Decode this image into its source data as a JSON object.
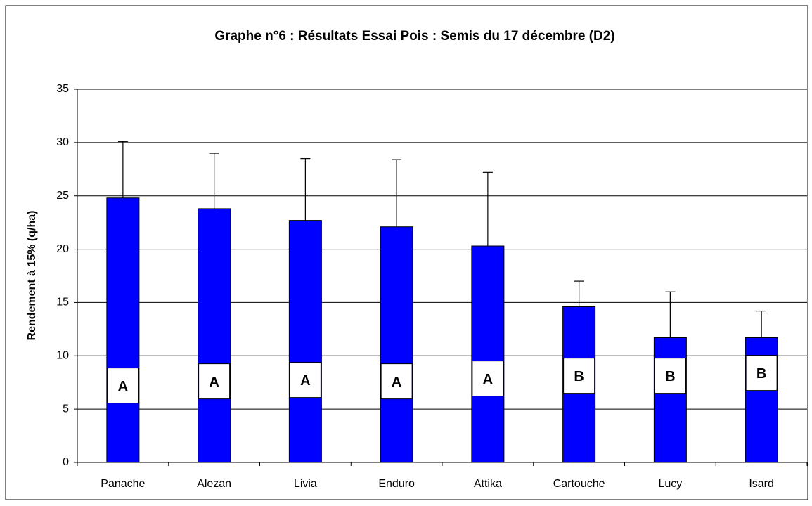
{
  "chart_data": {
    "type": "bar",
    "title": "Graphe n°6 : Résultats Essai Pois : Semis du 17 décembre (D2)",
    "y_label": "Rendement à 15% (q/ha)",
    "categories": [
      "Panache",
      "Alezan",
      "Livia",
      "Enduro",
      "Attika",
      "Cartouche",
      "Lucy",
      "Isard"
    ],
    "values": [
      24.8,
      23.8,
      22.7,
      22.1,
      20.3,
      14.6,
      11.7,
      11.7
    ],
    "errors": [
      5.3,
      5.2,
      5.8,
      6.3,
      6.9,
      2.4,
      4.3,
      2.5
    ],
    "letters": [
      "A",
      "A",
      "A",
      "A",
      "A",
      "B",
      "B",
      "B"
    ],
    "color": "#0000ff",
    "ylim": [
      0,
      35
    ],
    "yticks": [
      0,
      5,
      10,
      15,
      20,
      25,
      30,
      35
    ],
    "grid": true
  }
}
